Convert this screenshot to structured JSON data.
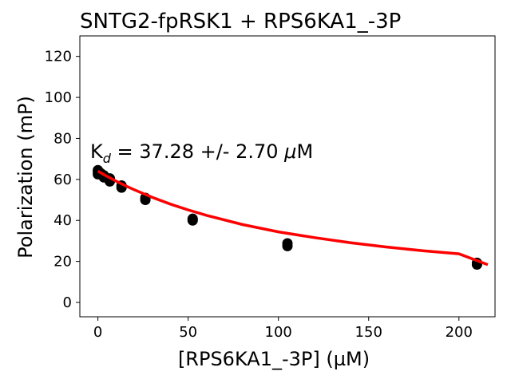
{
  "chart_data": {
    "type": "scatter",
    "title": "SNTG2-fpRSK1 + RPS6KA1_-3P",
    "xlabel": "[RPS6KA1_-3P] (µM)",
    "ylabel": "Polarization (mP)",
    "xlim": [
      -10,
      220
    ],
    "ylim": [
      -7,
      130
    ],
    "xticks": [
      0,
      50,
      100,
      150,
      200
    ],
    "yticks": [
      0,
      20,
      40,
      60,
      80,
      100,
      120
    ],
    "grid": false,
    "annotation": {
      "prefix": "K",
      "subscript": "d",
      "text": " = 37.28 +/- 2.70 ",
      "unit_symbol": "μ",
      "unit": "M"
    },
    "points": {
      "color": "#000000",
      "x": [
        0,
        0,
        0,
        1.6,
        1.6,
        3.3,
        3.3,
        6.6,
        6.6,
        13.1,
        13.1,
        26.3,
        26.3,
        52.5,
        52.5,
        105,
        105,
        210,
        210
      ],
      "y": [
        62.5,
        63.5,
        64.5,
        62.5,
        63,
        61,
        62,
        59,
        60.5,
        56,
        57,
        50,
        51,
        40,
        40.8,
        27.5,
        28.8,
        18.5,
        19.3
      ]
    },
    "fit": {
      "color": "#ff0000",
      "x": [
        0,
        2,
        5,
        10,
        15,
        20,
        30,
        40,
        50,
        60,
        80,
        100,
        120,
        140,
        160,
        180,
        200,
        216
      ],
      "y": [
        64,
        63.0,
        61.5,
        59.2,
        57.0,
        55.0,
        51.3,
        48.0,
        45.1,
        42.5,
        38.0,
        34.4,
        31.6,
        29.1,
        27.0,
        25.2,
        23.7,
        18.4
      ]
    }
  }
}
